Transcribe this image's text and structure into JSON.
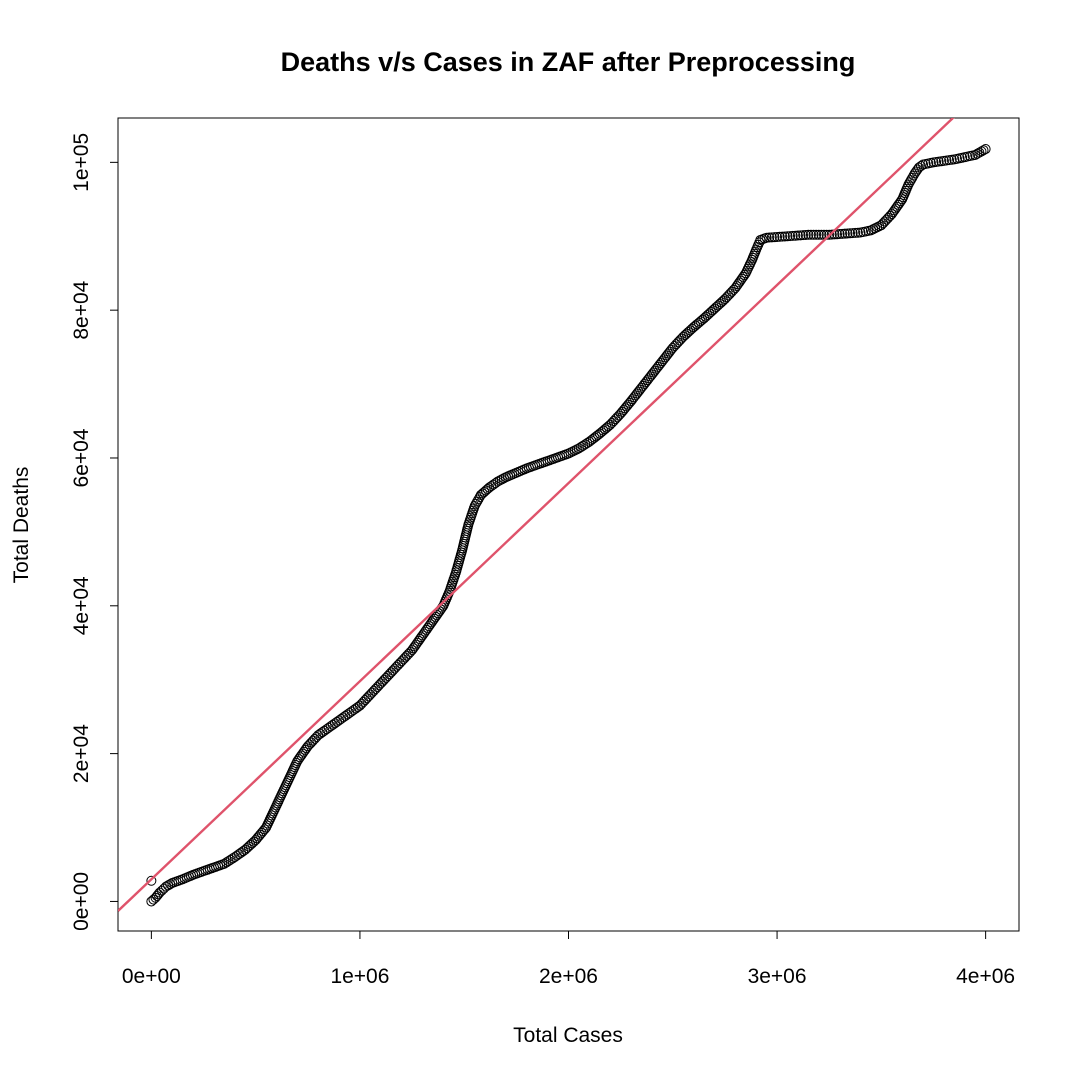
{
  "chart_data": {
    "type": "scatter",
    "title": "Deaths v/s Cases in ZAF after Preprocessing",
    "xlabel": "Total Cases",
    "ylabel": "Total Deaths",
    "xlim": [
      -160000,
      4160000
    ],
    "ylim": [
      -4000,
      106000
    ],
    "x_ticks": [
      {
        "value": 0,
        "label": "0e+00"
      },
      {
        "value": 1000000,
        "label": "1e+06"
      },
      {
        "value": 2000000,
        "label": "2e+06"
      },
      {
        "value": 3000000,
        "label": "3e+06"
      },
      {
        "value": 4000000,
        "label": "4e+06"
      }
    ],
    "y_ticks": [
      {
        "value": 0,
        "label": "0e+00"
      },
      {
        "value": 20000,
        "label": "2e+04"
      },
      {
        "value": 40000,
        "label": "4e+04"
      },
      {
        "value": 60000,
        "label": "6e+04"
      },
      {
        "value": 80000,
        "label": "8e+04"
      },
      {
        "value": 100000,
        "label": "1e+05"
      }
    ],
    "grid": false,
    "points": {
      "marker": "open-circle",
      "color": "#000000",
      "x": [
        0,
        20000,
        40000,
        70000,
        100000,
        150000,
        200000,
        250000,
        300000,
        350000,
        400000,
        450000,
        500000,
        550000,
        600000,
        650000,
        700000,
        750000,
        800000,
        850000,
        900000,
        950000,
        1000000,
        1050000,
        1100000,
        1150000,
        1200000,
        1250000,
        1300000,
        1350000,
        1400000,
        1430000,
        1460000,
        1490000,
        1520000,
        1550000,
        1580000,
        1620000,
        1660000,
        1700000,
        1750000,
        1800000,
        1850000,
        1900000,
        1950000,
        2000000,
        2050000,
        2100000,
        2150000,
        2200000,
        2250000,
        2300000,
        2350000,
        2400000,
        2450000,
        2500000,
        2550000,
        2600000,
        2650000,
        2700000,
        2750000,
        2800000,
        2850000,
        2880000,
        2900000,
        2920000,
        2950000,
        3000000,
        3050000,
        3100000,
        3150000,
        3200000,
        3250000,
        3300000,
        3350000,
        3400000,
        3450000,
        3500000,
        3550000,
        3600000,
        3630000,
        3660000,
        3680000,
        3700000,
        3750000,
        3800000,
        3850000,
        3900000,
        3950000,
        4000000
      ],
      "y": [
        0,
        500,
        1200,
        2000,
        2500,
        3000,
        3600,
        4100,
        4600,
        5100,
        6000,
        7000,
        8300,
        10000,
        13000,
        16000,
        19000,
        21000,
        22500,
        23500,
        24500,
        25500,
        26500,
        28000,
        29500,
        31000,
        32500,
        34000,
        36000,
        38000,
        40000,
        42000,
        44500,
        47500,
        51000,
        53500,
        55000,
        56000,
        56800,
        57400,
        58000,
        58600,
        59100,
        59600,
        60100,
        60600,
        61300,
        62200,
        63300,
        64500,
        66000,
        67700,
        69500,
        71300,
        73100,
        74900,
        76400,
        77700,
        78900,
        80200,
        81500,
        83000,
        85000,
        86800,
        88200,
        89500,
        89800,
        89900,
        90000,
        90100,
        90200,
        90200,
        90200,
        90300,
        90400,
        90500,
        90800,
        91500,
        93000,
        95000,
        97000,
        98500,
        99300,
        99700,
        100000,
        100200,
        100400,
        100700,
        101000,
        101800
      ]
    },
    "outlier_points": {
      "x": [
        0
      ],
      "y": [
        2800
      ]
    },
    "fit_line": {
      "color": "#df536b",
      "intercept": 3000,
      "slope": 0.0268
    }
  }
}
